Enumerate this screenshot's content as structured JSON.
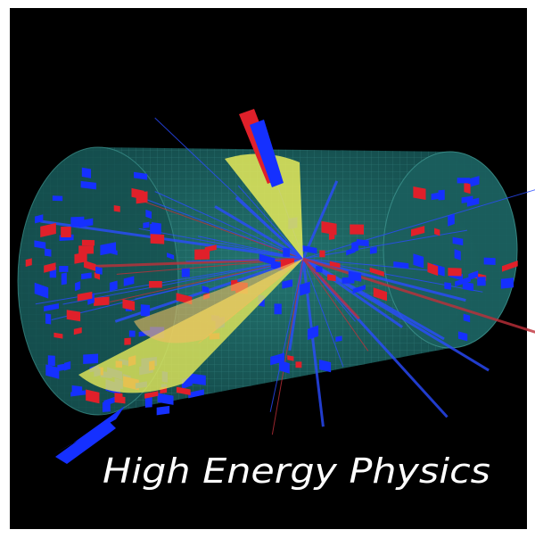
{
  "caption": "High Energy Physics"
}
